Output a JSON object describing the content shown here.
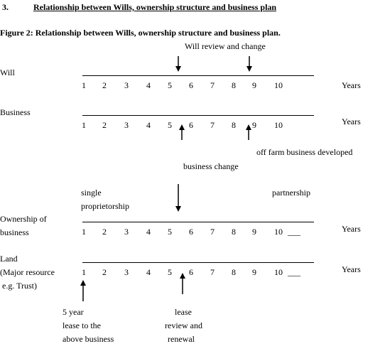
{
  "heading": {
    "number": "3.",
    "title": "Relationship between Wills, ownership structure and business plan"
  },
  "figure_caption": "Figure 2: Relationship between Wills, ownership structure and business plan.",
  "tick_labels": [
    "1",
    "2",
    "3",
    "4",
    "5",
    "6",
    "7",
    "8",
    "9",
    "10"
  ],
  "unit_label": "Years",
  "rows": {
    "will": {
      "label": "Will"
    },
    "business": {
      "label": "Business"
    },
    "ownership": {
      "label_line1": "Ownership of",
      "label_line2": "business",
      "tail": "___"
    },
    "land": {
      "label_line1": "Land",
      "label_line2": "(Major resource",
      "label_line3": "e.g. Trust)",
      "tail": "___"
    }
  },
  "annotations": {
    "will_review": "Will review and change",
    "off_farm": "off farm business developed",
    "business_change": "business change",
    "single_line1": "single",
    "single_line2": "proprietorship",
    "partnership": "partnership",
    "lease5_line1": "5 year",
    "lease5_line2": "lease to the",
    "lease5_line3": "above business",
    "lease_review_line1": "lease",
    "lease_review_line2": "review and",
    "lease_review_line3": "renewal"
  }
}
